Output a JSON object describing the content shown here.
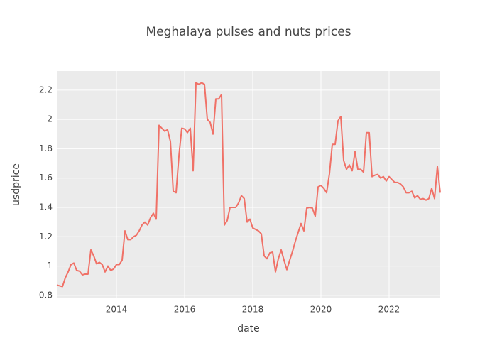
{
  "chart_data": {
    "type": "line",
    "title": "Meghalaya pulses and nuts prices",
    "x_label": "date",
    "y_label": "usdprice",
    "x": [
      "2012-04",
      "2012-05",
      "2012-06",
      "2012-07",
      "2012-08",
      "2012-09",
      "2012-10",
      "2012-11",
      "2012-12",
      "2013-01",
      "2013-02",
      "2013-03",
      "2013-04",
      "2013-05",
      "2013-06",
      "2013-07",
      "2013-08",
      "2013-09",
      "2013-10",
      "2013-11",
      "2013-12",
      "2014-01",
      "2014-02",
      "2014-03",
      "2014-04",
      "2014-05",
      "2014-06",
      "2014-07",
      "2014-08",
      "2014-09",
      "2014-10",
      "2014-11",
      "2014-12",
      "2015-01",
      "2015-02",
      "2015-03",
      "2015-04",
      "2015-05",
      "2015-06",
      "2015-07",
      "2015-08",
      "2015-09",
      "2015-10",
      "2015-11",
      "2015-12",
      "2016-01",
      "2016-02",
      "2016-03",
      "2016-04",
      "2016-05",
      "2016-06",
      "2016-07",
      "2016-08",
      "2016-09",
      "2016-10",
      "2016-11",
      "2016-12",
      "2017-01",
      "2017-02",
      "2017-03",
      "2017-04",
      "2017-05",
      "2017-06",
      "2017-07",
      "2017-08",
      "2017-09",
      "2017-10",
      "2017-11",
      "2017-12",
      "2018-01",
      "2018-02",
      "2018-03",
      "2018-04",
      "2018-05",
      "2018-06",
      "2018-07",
      "2018-08",
      "2018-09",
      "2018-10",
      "2018-11",
      "2018-12",
      "2019-01",
      "2019-02",
      "2019-03",
      "2019-04",
      "2019-05",
      "2019-06",
      "2019-07",
      "2019-08",
      "2019-09",
      "2019-10",
      "2019-11",
      "2019-12",
      "2020-01",
      "2020-02",
      "2020-03",
      "2020-04",
      "2020-05",
      "2020-06",
      "2020-07",
      "2020-08",
      "2020-09",
      "2020-10",
      "2020-11",
      "2020-12",
      "2021-01",
      "2021-02",
      "2021-03",
      "2021-04",
      "2021-05",
      "2021-06",
      "2021-07",
      "2021-08",
      "2021-09",
      "2021-10",
      "2021-11",
      "2021-12",
      "2022-01",
      "2022-02",
      "2022-03",
      "2022-04",
      "2022-05",
      "2022-06",
      "2022-07",
      "2022-08",
      "2022-09",
      "2022-10",
      "2022-11",
      "2022-12",
      "2023-01",
      "2023-02",
      "2023-03",
      "2023-04",
      "2023-05",
      "2023-06",
      "2023-07"
    ],
    "series": [
      {
        "color": "#f07167",
        "values": [
          0.87,
          0.865,
          0.86,
          0.92,
          0.96,
          1.01,
          1.02,
          0.97,
          0.965,
          0.94,
          0.945,
          0.945,
          1.11,
          1.07,
          1.015,
          1.025,
          1.01,
          0.96,
          1.0,
          0.97,
          0.98,
          1.01,
          1.01,
          1.04,
          1.24,
          1.18,
          1.18,
          1.2,
          1.21,
          1.24,
          1.28,
          1.3,
          1.28,
          1.33,
          1.36,
          1.32,
          1.96,
          1.94,
          1.92,
          1.93,
          1.85,
          1.51,
          1.5,
          1.75,
          1.94,
          1.935,
          1.91,
          1.94,
          1.65,
          2.25,
          2.24,
          2.25,
          2.24,
          2.0,
          1.98,
          1.9,
          2.14,
          2.14,
          2.17,
          1.28,
          1.31,
          1.4,
          1.4,
          1.4,
          1.43,
          1.48,
          1.46,
          1.3,
          1.32,
          1.26,
          1.25,
          1.24,
          1.22,
          1.07,
          1.05,
          1.09,
          1.095,
          0.96,
          1.05,
          1.11,
          1.04,
          0.975,
          1.04,
          1.1,
          1.17,
          1.23,
          1.29,
          1.24,
          1.395,
          1.4,
          1.395,
          1.34,
          1.54,
          1.55,
          1.53,
          1.5,
          1.63,
          1.83,
          1.83,
          1.99,
          2.02,
          1.72,
          1.66,
          1.69,
          1.65,
          1.78,
          1.66,
          1.66,
          1.64,
          1.91,
          1.91,
          1.61,
          1.62,
          1.625,
          1.6,
          1.61,
          1.58,
          1.61,
          1.59,
          1.57,
          1.57,
          1.56,
          1.54,
          1.5,
          1.5,
          1.51,
          1.465,
          1.48,
          1.455,
          1.46,
          1.45,
          1.46,
          1.53,
          1.46,
          1.68,
          1.5
        ]
      }
    ],
    "xlim": [
      "2012-04",
      "2023-07"
    ],
    "xticks": [
      "2014",
      "2016",
      "2018",
      "2020",
      "2022"
    ],
    "ylim": [
      0.78,
      2.33
    ],
    "yticks": [
      0.8,
      1,
      1.2,
      1.4,
      1.6,
      1.8,
      2,
      2.2
    ],
    "grid": true
  }
}
